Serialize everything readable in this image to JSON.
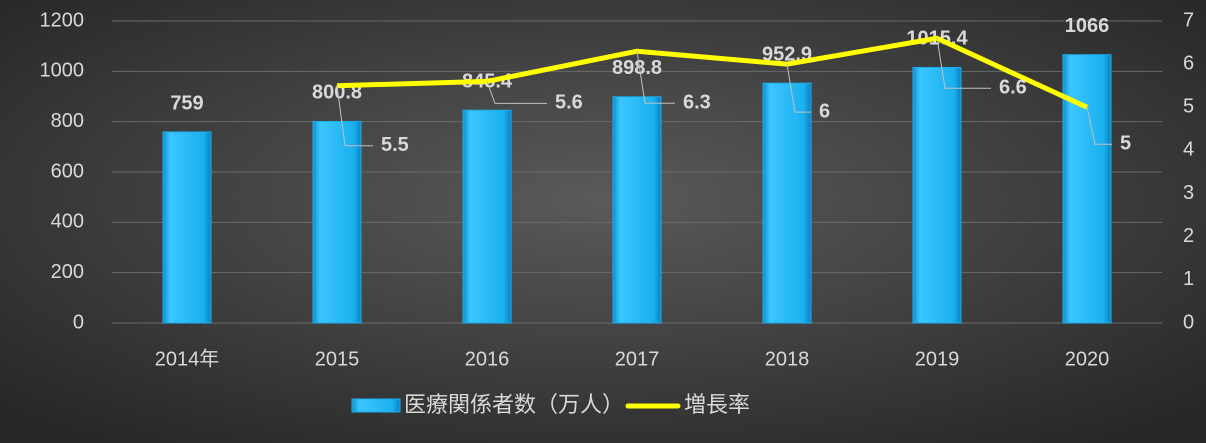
{
  "chart_data": {
    "type": "bar-line",
    "categories": [
      "2014年",
      "2015",
      "2016",
      "2017",
      "2018",
      "2019",
      "2020"
    ],
    "series": [
      {
        "name": "医療関係者数（万人）",
        "color": "#1ab0ee",
        "type": "bar",
        "values": [
          759,
          800.8,
          845.4,
          898.8,
          952.9,
          1015.4,
          1066
        ]
      },
      {
        "name": "増長率",
        "color": "#ffff00",
        "type": "line",
        "axis": "y2",
        "values": [
          null,
          5.5,
          5.6,
          6.3,
          6,
          6.6,
          5
        ]
      }
    ],
    "ylim": [
      0,
      1200
    ],
    "yticks": [
      0,
      200,
      400,
      600,
      800,
      1000,
      1200
    ],
    "y2lim": [
      0,
      7
    ],
    "y2ticks": [
      0,
      1,
      2,
      3,
      4,
      5,
      6,
      7
    ],
    "grid": true,
    "legend": "bottom"
  }
}
